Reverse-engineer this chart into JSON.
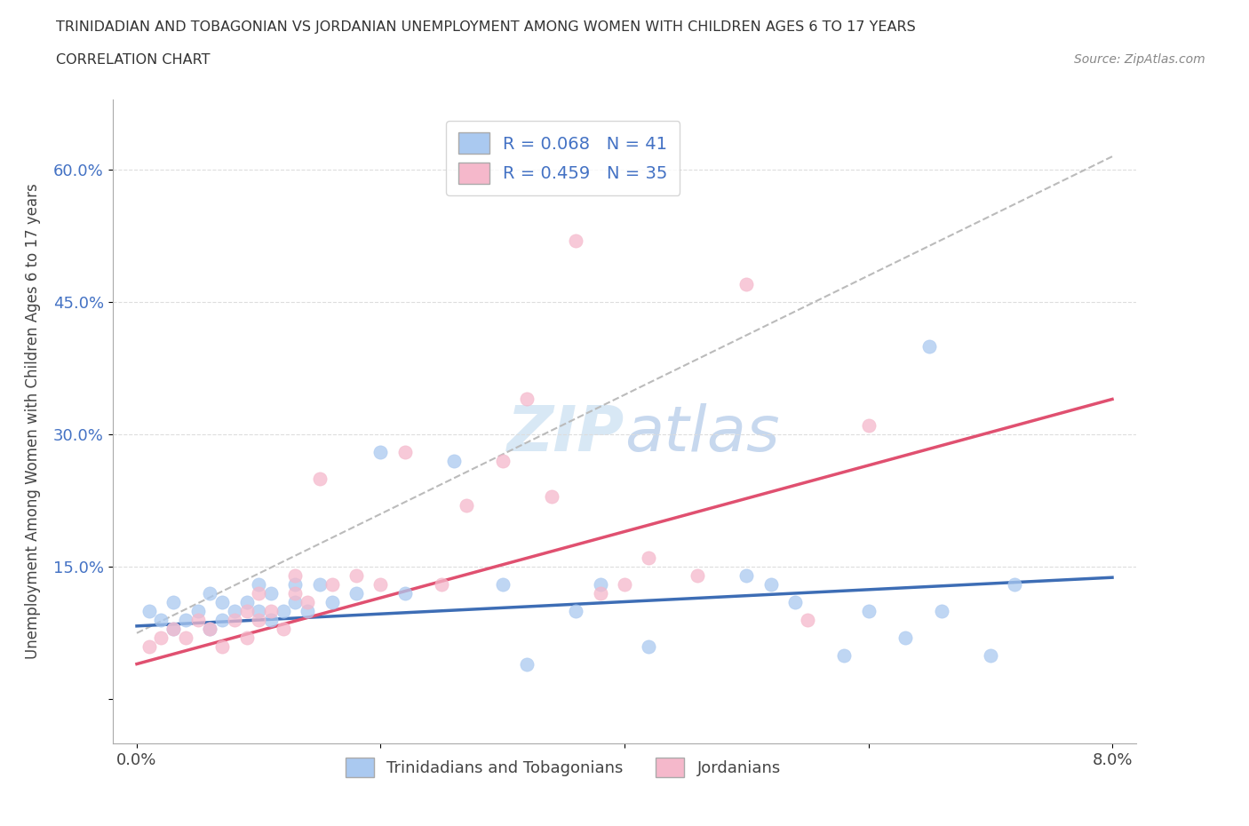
{
  "title_line1": "TRINIDADIAN AND TOBAGONIAN VS JORDANIAN UNEMPLOYMENT AMONG WOMEN WITH CHILDREN AGES 6 TO 17 YEARS",
  "title_line2": "CORRELATION CHART",
  "source": "Source: ZipAtlas.com",
  "ylabel": "Unemployment Among Women with Children Ages 6 to 17 years",
  "xlim": [
    0.0,
    0.08
  ],
  "ylim": [
    -0.05,
    0.68
  ],
  "xticks": [
    0.0,
    0.02,
    0.04,
    0.06,
    0.08
  ],
  "xtick_labels": [
    "0.0%",
    "",
    "",
    "",
    "8.0%"
  ],
  "ytick_positions": [
    0.0,
    0.15,
    0.3,
    0.45,
    0.6
  ],
  "ytick_labels": [
    "",
    "15.0%",
    "30.0%",
    "45.0%",
    "60.0%"
  ],
  "r_blue": 0.068,
  "n_blue": 41,
  "r_pink": 0.459,
  "n_pink": 35,
  "blue_color": "#aac9f0",
  "pink_color": "#f5b8cb",
  "line_blue_color": "#3d6db5",
  "line_pink_color": "#e05070",
  "gray_line_color": "#bbbbbb",
  "ytick_color": "#4472c4",
  "watermark_color": "#d8e8f5",
  "blue_points_x": [
    0.001,
    0.002,
    0.003,
    0.003,
    0.004,
    0.005,
    0.006,
    0.006,
    0.007,
    0.007,
    0.008,
    0.009,
    0.01,
    0.01,
    0.011,
    0.011,
    0.012,
    0.013,
    0.013,
    0.014,
    0.015,
    0.016,
    0.018,
    0.02,
    0.022,
    0.026,
    0.03,
    0.032,
    0.036,
    0.038,
    0.042,
    0.05,
    0.052,
    0.054,
    0.058,
    0.06,
    0.063,
    0.065,
    0.066,
    0.07,
    0.072
  ],
  "blue_points_y": [
    0.1,
    0.09,
    0.11,
    0.08,
    0.09,
    0.1,
    0.08,
    0.12,
    0.09,
    0.11,
    0.1,
    0.11,
    0.1,
    0.13,
    0.12,
    0.09,
    0.1,
    0.11,
    0.13,
    0.1,
    0.13,
    0.11,
    0.12,
    0.28,
    0.12,
    0.27,
    0.13,
    0.04,
    0.1,
    0.13,
    0.06,
    0.14,
    0.13,
    0.11,
    0.05,
    0.1,
    0.07,
    0.4,
    0.1,
    0.05,
    0.13
  ],
  "pink_points_x": [
    0.001,
    0.002,
    0.003,
    0.004,
    0.005,
    0.006,
    0.007,
    0.008,
    0.009,
    0.009,
    0.01,
    0.01,
    0.011,
    0.012,
    0.013,
    0.013,
    0.014,
    0.015,
    0.016,
    0.018,
    0.02,
    0.022,
    0.025,
    0.027,
    0.03,
    0.032,
    0.034,
    0.036,
    0.038,
    0.04,
    0.042,
    0.046,
    0.05,
    0.055,
    0.06
  ],
  "pink_points_y": [
    0.06,
    0.07,
    0.08,
    0.07,
    0.09,
    0.08,
    0.06,
    0.09,
    0.1,
    0.07,
    0.09,
    0.12,
    0.1,
    0.08,
    0.12,
    0.14,
    0.11,
    0.25,
    0.13,
    0.14,
    0.13,
    0.28,
    0.13,
    0.22,
    0.27,
    0.34,
    0.23,
    0.52,
    0.12,
    0.13,
    0.16,
    0.14,
    0.47,
    0.09,
    0.31
  ],
  "blue_line_x0": 0.0,
  "blue_line_y0": 0.083,
  "blue_line_x1": 0.08,
  "blue_line_y1": 0.138,
  "pink_line_x0": 0.0,
  "pink_line_y0": 0.04,
  "pink_line_x1": 0.08,
  "pink_line_y1": 0.34,
  "gray_line_x0": 0.0,
  "gray_line_y0": 0.075,
  "gray_line_x1": 0.08,
  "gray_line_y1": 0.615
}
